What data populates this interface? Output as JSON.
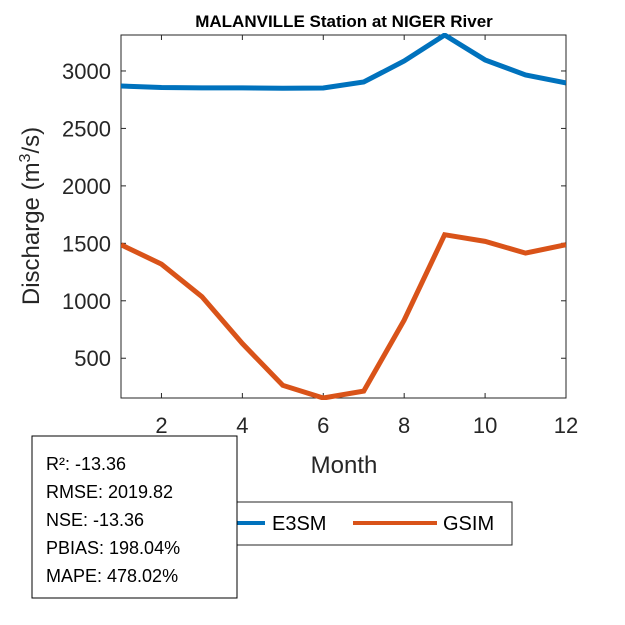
{
  "chart_data": {
    "type": "line",
    "title": "MALANVILLE  Station at  NIGER  River",
    "xlabel": "Month",
    "ylabel": "Discharge (m³/s)",
    "ylabel_parts": {
      "base": "Discharge (m",
      "sup": "3",
      "tail": "/s)"
    },
    "xlim": [
      1,
      12
    ],
    "ylim": [
      154,
      3313
    ],
    "xticks": [
      2,
      4,
      6,
      8,
      10,
      12
    ],
    "yticks": [
      500,
      1000,
      1500,
      2000,
      2500,
      3000
    ],
    "grid": false,
    "x": [
      1,
      2,
      3,
      4,
      5,
      6,
      7,
      8,
      9,
      10,
      11,
      12
    ],
    "series": [
      {
        "name": "E3SM",
        "color": "#0072BD",
        "values": [
          2869,
          2856,
          2853,
          2853,
          2850,
          2852,
          2904,
          3087,
          3313,
          3096,
          2965,
          2896
        ]
      },
      {
        "name": "GSIM",
        "color": "#D95319",
        "values": [
          1488,
          1319,
          1036,
          628,
          264,
          154,
          214,
          832,
          1575,
          1517,
          1415,
          1488
        ]
      }
    ],
    "legend": {
      "placement": "bottom-center",
      "entries": [
        "E3SM",
        "GSIM"
      ]
    },
    "annotations": {
      "stats_box": [
        "R²: -13.36",
        "RMSE: 2019.82",
        "NSE: -13.36",
        "PBIAS: 198.04%",
        "MAPE: 478.02%"
      ]
    }
  }
}
